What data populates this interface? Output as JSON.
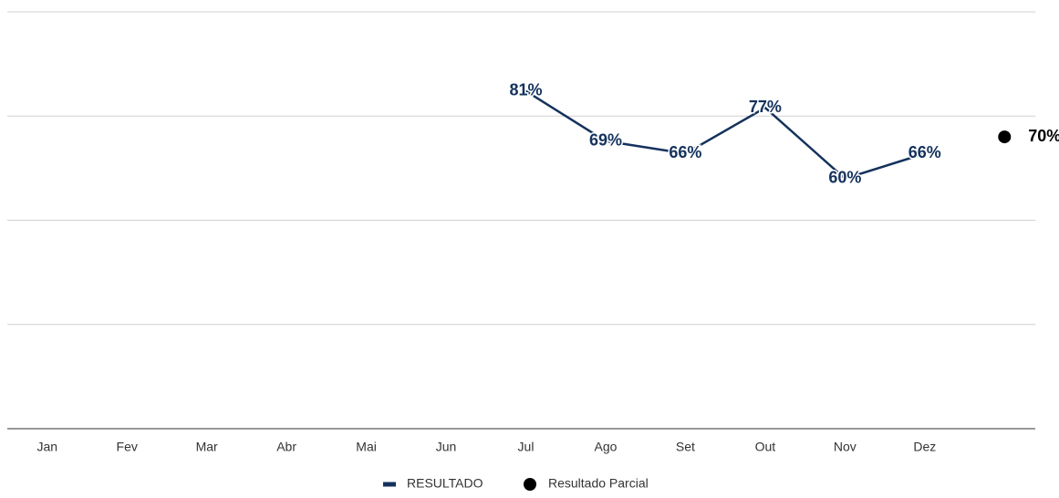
{
  "chart_data": {
    "type": "line",
    "categories": [
      "Jan",
      "Fev",
      "Mar",
      "Abr",
      "Mai",
      "Jun",
      "Jul",
      "Ago",
      "Set",
      "Out",
      "Nov",
      "Dez",
      null
    ],
    "series": [
      {
        "name": "RESULTADO",
        "color": "#14325c",
        "values": [
          null,
          null,
          null,
          null,
          null,
          null,
          81,
          69,
          66,
          77,
          60,
          66,
          null
        ],
        "value_labels": [
          null,
          null,
          null,
          null,
          null,
          null,
          "81%",
          "69%",
          "66%",
          "77%",
          "60%",
          "66%",
          null
        ]
      },
      {
        "name": "Resultado Parcial",
        "color": "#000000",
        "marker": "dot",
        "values": [
          null,
          null,
          null,
          null,
          null,
          null,
          null,
          null,
          null,
          null,
          null,
          null,
          70
        ],
        "value_labels": [
          null,
          null,
          null,
          null,
          null,
          null,
          null,
          null,
          null,
          null,
          null,
          null,
          "70%"
        ]
      }
    ],
    "ylim": [
      0,
      100
    ],
    "yticks": [
      0,
      25,
      50,
      75,
      100
    ],
    "grid": true,
    "legend": "bottom"
  }
}
